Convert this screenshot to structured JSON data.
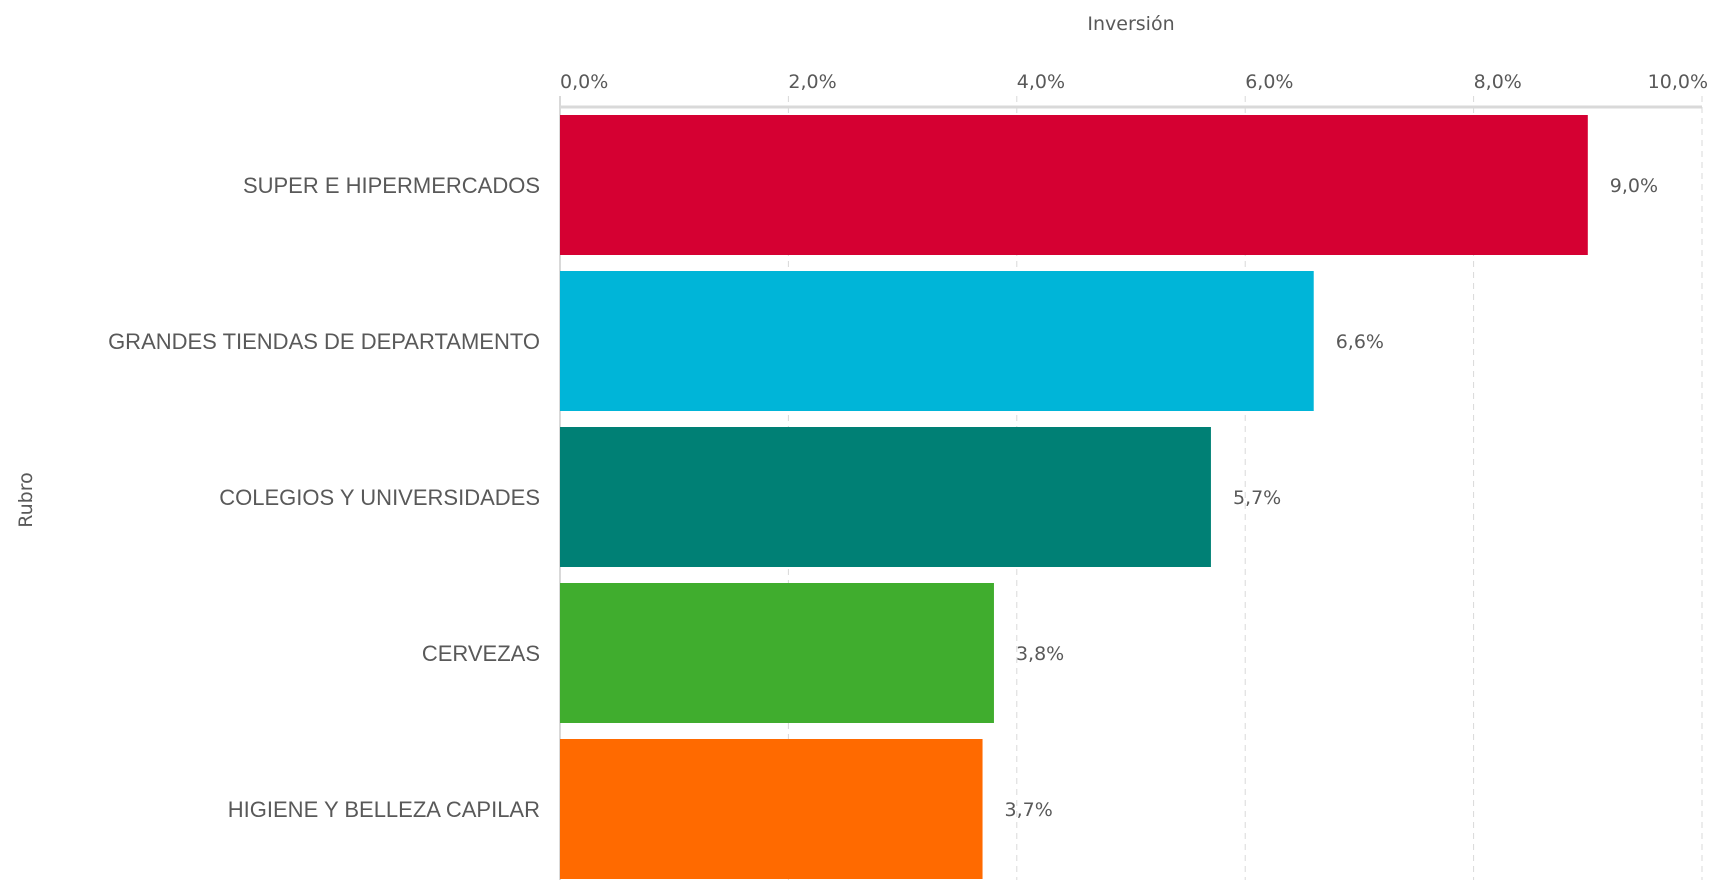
{
  "chart_data": {
    "type": "bar",
    "orientation": "horizontal",
    "xlabel": "Inversión",
    "ylabel": "Rubro",
    "xlim": [
      0,
      10
    ],
    "x_ticks": [
      "0,0%",
      "2,0%",
      "4,0%",
      "6,0%",
      "8,0%",
      "10,0%"
    ],
    "x_tick_values": [
      0,
      2,
      4,
      6,
      8,
      10
    ],
    "grid": true,
    "legend": "none",
    "categories": [
      "SUPER E HIPERMERCADOS",
      "GRANDES TIENDAS DE DEPARTAMENTO",
      "COLEGIOS Y UNIVERSIDADES",
      "CERVEZAS",
      "HIGIENE Y BELLEZA CAPILAR"
    ],
    "values": [
      9.0,
      6.6,
      5.7,
      3.8,
      3.7
    ],
    "value_labels": [
      "9,0%",
      "6,6%",
      "5,7%",
      "3,8%",
      "3,7%"
    ],
    "colors": [
      "#d50032",
      "#00b5d8",
      "#008075",
      "#40ad2e",
      "#ff6a00"
    ]
  }
}
